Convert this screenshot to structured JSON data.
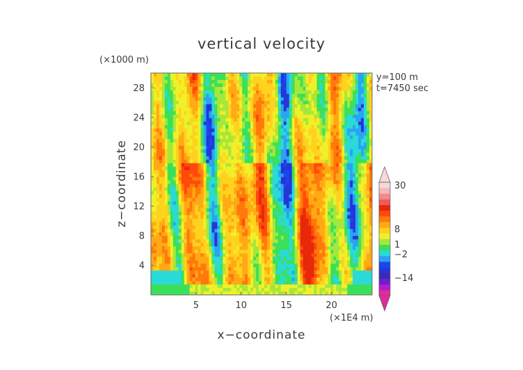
{
  "chart_data": {
    "type": "heatmap",
    "title": "vertical velocity",
    "xlabel": "x−coordinate",
    "ylabel": "z−coordinate",
    "x_unit": "(×1E4 m)",
    "z_unit": "(×1000 m)",
    "annotations": [
      "y=100 m",
      "t=7450 sec"
    ],
    "xlim": [
      0,
      24.5
    ],
    "ylim": [
      0,
      30
    ],
    "xticks": [
      5,
      10,
      15,
      20
    ],
    "yticks": [
      4,
      8,
      12,
      16,
      20,
      24,
      28
    ],
    "colorbar": {
      "tick_labels": [
        "30",
        "8",
        "1",
        "−2",
        "−14"
      ],
      "colors": [
        "#e22a9c",
        "#b01ec8",
        "#6a1fd0",
        "#3a2ab4",
        "#2436d8",
        "#1a46f0",
        "#2aa4f0",
        "#2adad8",
        "#3be05a",
        "#a6e83a",
        "#f0f028",
        "#ffd21e",
        "#ffaa14",
        "#ff7a0a",
        "#ff4a0a",
        "#e8280a",
        "#ef5a5a",
        "#f28a8a",
        "#f4b8b8",
        "#f6d8d8"
      ]
    },
    "field_description_values": {
      "lower_layer_z_max": 3,
      "active_layer_z_max": 30
    }
  }
}
